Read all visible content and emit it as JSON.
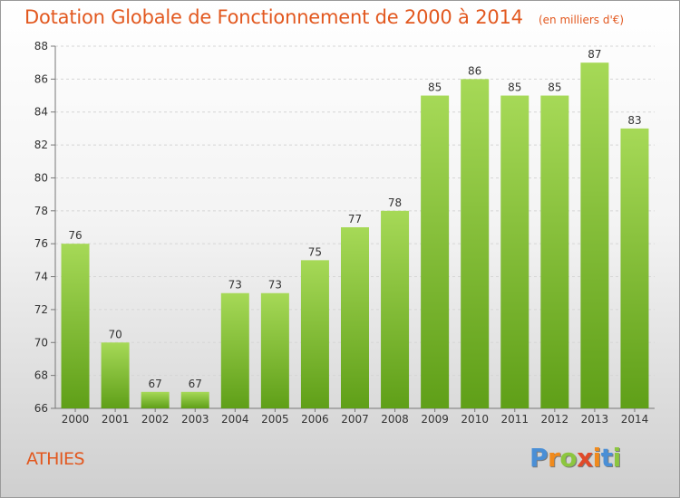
{
  "title": "Dotation Globale de Fonctionnement de 2000 à 2014",
  "subtitle": "(en milliers d'€)",
  "commune": "ATHIES",
  "logo": {
    "text": "Proxiti",
    "colors": [
      "#4a8fd6",
      "#f08a1c",
      "#8cc63f",
      "#e04a2a"
    ]
  },
  "colors": {
    "bar_light": "#a6d957",
    "bar_dark": "#5f9f18",
    "accent": "#e2581f"
  },
  "chart_data": {
    "type": "bar",
    "title": "Dotation Globale de Fonctionnement de 2000 à 2014",
    "subtitle": "(en milliers d'€)",
    "xlabel": "",
    "ylabel": "",
    "categories": [
      "2000",
      "2001",
      "2002",
      "2003",
      "2004",
      "2005",
      "2006",
      "2007",
      "2008",
      "2009",
      "2010",
      "2011",
      "2012",
      "2013",
      "2014"
    ],
    "values": [
      76,
      70,
      67,
      67,
      73,
      73,
      75,
      77,
      78,
      85,
      86,
      85,
      85,
      87,
      83
    ],
    "ylim": [
      66,
      88
    ],
    "yticks": [
      66,
      68,
      70,
      72,
      74,
      76,
      78,
      80,
      82,
      84,
      86,
      88
    ],
    "grid": true,
    "legend": "none",
    "data_labels": true
  }
}
